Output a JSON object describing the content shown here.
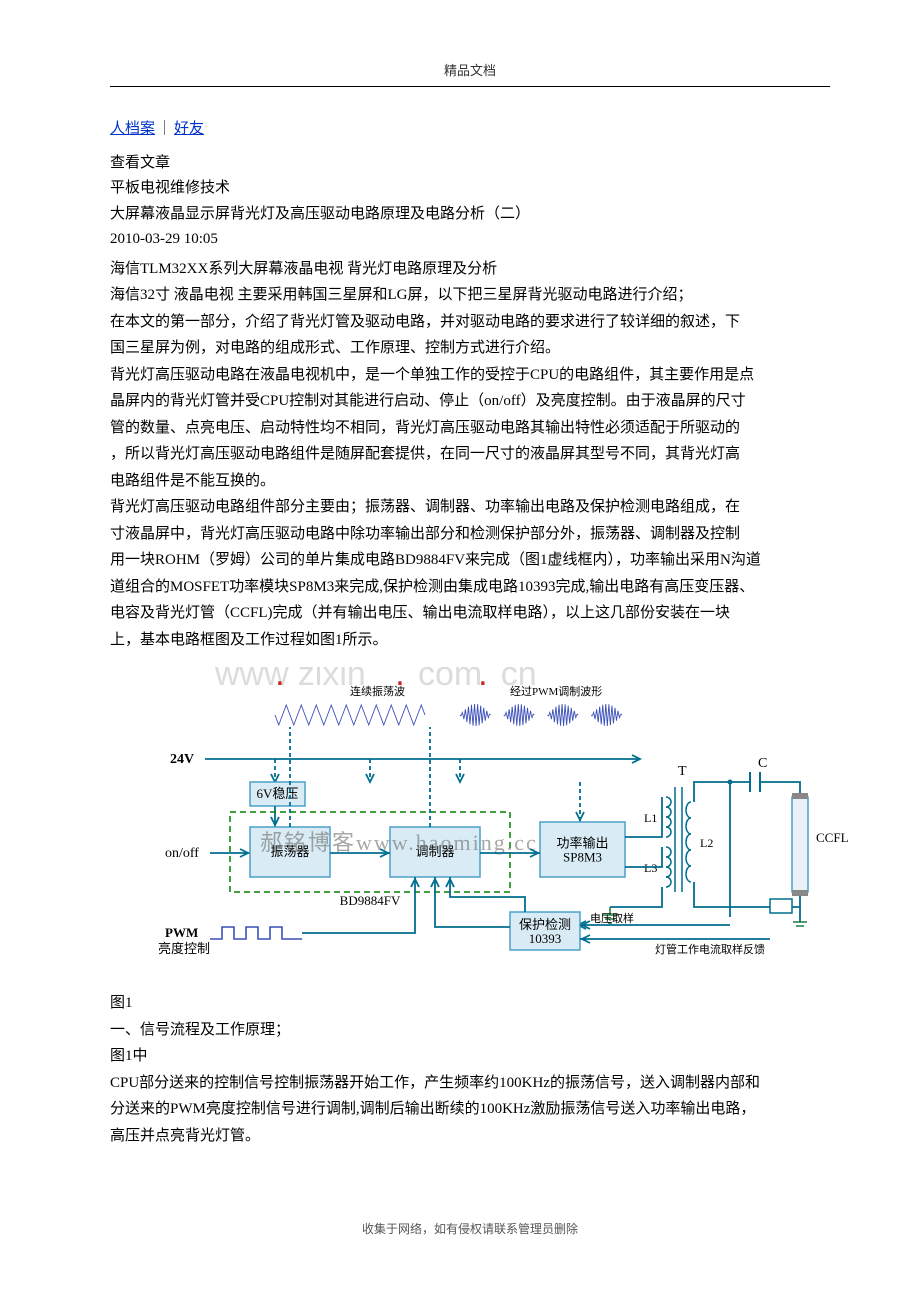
{
  "header": {
    "label": "精品文档"
  },
  "topLinks": {
    "profile": "人档案",
    "friends": "好友"
  },
  "meta": {
    "viewArticle": "  查看文章",
    "category": "平板电视维修技术",
    "title": "大屏幕液晶显示屏背光灯及高压驱动电路原理及电路分析（二）",
    "date": "2010-03-29 10:05"
  },
  "paragraphs": {
    "p1": "海信TLM32XX系列大屏幕液晶电视 背光灯电路原理及分析",
    "p2": "海信32寸 液晶电视 主要采用韩国三星屏和LG屏，以下把三星屏背光驱动电路进行介绍；",
    "p3": "在本文的第一部分，介绍了背光灯管及驱动电路，并对驱动电路的要求进行了较详细的叙述，下",
    "p4": "国三星屏为例，对电路的组成形式、工作原理、控制方式进行介绍。",
    "p5": "背光灯高压驱动电路在液晶电视机中，是一个单独工作的受控于CPU的电路组件，其主要作用是点",
    "p6": "晶屏内的背光灯管并受CPU控制对其能进行启动、停止（on/off）及亮度控制。由于液晶屏的尺寸",
    "p7": "管的数量、点亮电压、启动特性均不相同，背光灯高压驱动电路其输出特性必须适配于所驱动的",
    "p8": "，所以背光灯高压驱动电路组件是随屏配套提供，在同一尺寸的液晶屏其型号不同，其背光灯高",
    "p9": "电路组件是不能互换的。",
    "p10": "背光灯高压驱动电路组件部分主要由；振荡器、调制器、功率输出电路及保护检测电路组成，在",
    "p11": "寸液晶屏中，背光灯高压驱动电路中除功率输出部分和检测保护部分外，振荡器、调制器及控制",
    "p12": "用一块ROHM（罗姆）公司的单片集成电路BD9884FV来完成（图1虚线框内），功率输出采用N沟道",
    "p13": "道组合的MOSFET功率模块SP8M3来完成,保护检测由集成电路10393完成,输出电路有高压变压器、",
    "p14": "电容及背光灯管（CCFL)完成（并有输出电压、输出电流取样电路），以上这几部份安装在一块",
    "p15": "上，基本电路框图及工作过程如图1所示。"
  },
  "figure": {
    "watermark1_a": "www",
    "watermark1_b": "zixin",
    "watermark1_c": "com",
    "watermark1_d": "cn",
    "watermark2": "郝铭博客www.haoming.cc",
    "labels": {
      "wave1": "连续振荡波",
      "wave2": "经过PWM调制波形",
      "v24": "24V",
      "reg6v": "6V稳压",
      "onoff": "on/off",
      "osc": "振荡器",
      "mod": "调制器",
      "chip": "BD9884FV",
      "pwr1": "功率输出",
      "pwr2": "SP8M3",
      "pwm1": "PWM",
      "pwm2": "亮度控制",
      "prot1": "保护检测",
      "prot2": "10393",
      "vsamp": "电压取样",
      "isamp": "灯管工作电流取样反馈",
      "T": "T",
      "C": "C",
      "L1": "L1",
      "L2": "L2",
      "L3": "L3",
      "ccfl": "CCFL"
    },
    "colors": {
      "box_fill": "#d9ecf5",
      "box_stroke": "#4aa0c8",
      "wire": "#006e8f",
      "gnd": "#1a7a3a",
      "dash": "#008000",
      "wave": "#3b4fb8",
      "wm": "#dcdcdc",
      "wm2": "#6e6e6e",
      "text": "#000000",
      "red": "#d02020"
    }
  },
  "afterFigure": {
    "f1": "图1",
    "f2": "一、信号流程及工作原理；",
    "f3": "图1中",
    "f4": "CPU部分送来的控制信号控制振荡器开始工作，产生频率约100KHz的振荡信号，送入调制器内部和",
    "f5": "分送来的PWM亮度控制信号进行调制,调制后输出断续的100KHz激励振荡信号送入功率输出电路，",
    "f6": "高压并点亮背光灯管。"
  },
  "footer": {
    "text": "收集于网络，如有侵权请联系管理员删除"
  }
}
